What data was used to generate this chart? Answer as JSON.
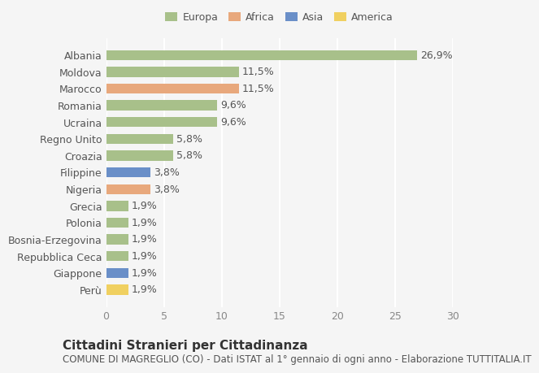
{
  "categories": [
    "Albania",
    "Moldova",
    "Marocco",
    "Romania",
    "Ucraina",
    "Regno Unito",
    "Croazia",
    "Filippine",
    "Nigeria",
    "Grecia",
    "Polonia",
    "Bosnia-Erzegovina",
    "Repubblica Ceca",
    "Giappone",
    "Perù"
  ],
  "values": [
    26.9,
    11.5,
    11.5,
    9.6,
    9.6,
    5.8,
    5.8,
    3.8,
    3.8,
    1.9,
    1.9,
    1.9,
    1.9,
    1.9,
    1.9
  ],
  "labels": [
    "26,9%",
    "11,5%",
    "11,5%",
    "9,6%",
    "9,6%",
    "5,8%",
    "5,8%",
    "3,8%",
    "3,8%",
    "1,9%",
    "1,9%",
    "1,9%",
    "1,9%",
    "1,9%",
    "1,9%"
  ],
  "continents": [
    "Europa",
    "Europa",
    "Africa",
    "Europa",
    "Europa",
    "Europa",
    "Europa",
    "Asia",
    "Africa",
    "Europa",
    "Europa",
    "Europa",
    "Europa",
    "Asia",
    "America"
  ],
  "colors": {
    "Europa": "#a8c08a",
    "Africa": "#e8a87c",
    "Asia": "#6a8fc8",
    "America": "#f0d060"
  },
  "legend_order": [
    "Europa",
    "Africa",
    "Asia",
    "America"
  ],
  "xlim": [
    0,
    30
  ],
  "xticks": [
    0,
    5,
    10,
    15,
    20,
    25,
    30
  ],
  "title": "Cittadini Stranieri per Cittadinanza",
  "subtitle": "COMUNE DI MAGREGLIO (CO) - Dati ISTAT al 1° gennaio di ogni anno - Elaborazione TUTTITALIA.IT",
  "bg_color": "#f5f5f5",
  "bar_height": 0.6,
  "grid_color": "#ffffff",
  "label_fontsize": 9,
  "tick_fontsize": 9,
  "title_fontsize": 11,
  "subtitle_fontsize": 8.5
}
